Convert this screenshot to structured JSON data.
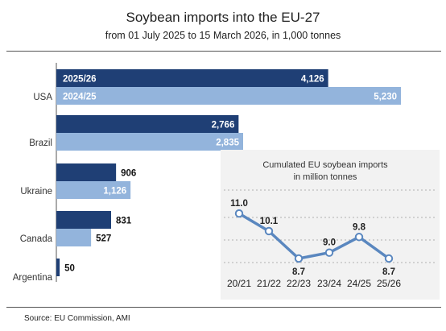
{
  "title": "Soybean imports into the EU-27",
  "subtitle": "from 01 July 2025 to 15 March 2026, in 1,000 tonnes",
  "source": "Source:  EU Commission, AMI",
  "colors": {
    "dark_bar": "#1f3f75",
    "light_bar": "#93b4dc",
    "line": "#5a87bf",
    "inset_bg": "#f2f2f2"
  },
  "chart_data": [
    {
      "type": "bar",
      "orientation": "horizontal",
      "categories": [
        "USA",
        "Brazil",
        "Ukraine",
        "Canada",
        "Argentina"
      ],
      "series": [
        {
          "name": "2025/26",
          "values": [
            4126,
            2766,
            906,
            831,
            50
          ]
        },
        {
          "name": "2024/25",
          "values": [
            5230,
            2835,
            1126,
            527,
            null
          ]
        }
      ],
      "value_labels": {
        "2025/26": [
          "4,126",
          "2,766",
          "906",
          "831",
          "50"
        ],
        "2024/25": [
          "5,230",
          "2,835",
          "1,126",
          "527",
          ""
        ]
      },
      "title": "Soybean imports into the EU-27",
      "subtitle": "from 01 July 2025 to 15 March 2026, in 1,000 tonnes"
    },
    {
      "type": "line",
      "title": "Cumulated EU soybean imports",
      "subtitle": "in million tonnes",
      "categories": [
        "20/21",
        "21/22",
        "22/23",
        "23/24",
        "24/25",
        "25/26"
      ],
      "values": [
        11.0,
        10.1,
        8.7,
        9.0,
        9.8,
        8.7
      ],
      "value_labels": [
        "11.0",
        "10.1",
        "8.7",
        "9.0",
        "9.8",
        "8.7"
      ],
      "grid": "horizontal dashed"
    }
  ]
}
